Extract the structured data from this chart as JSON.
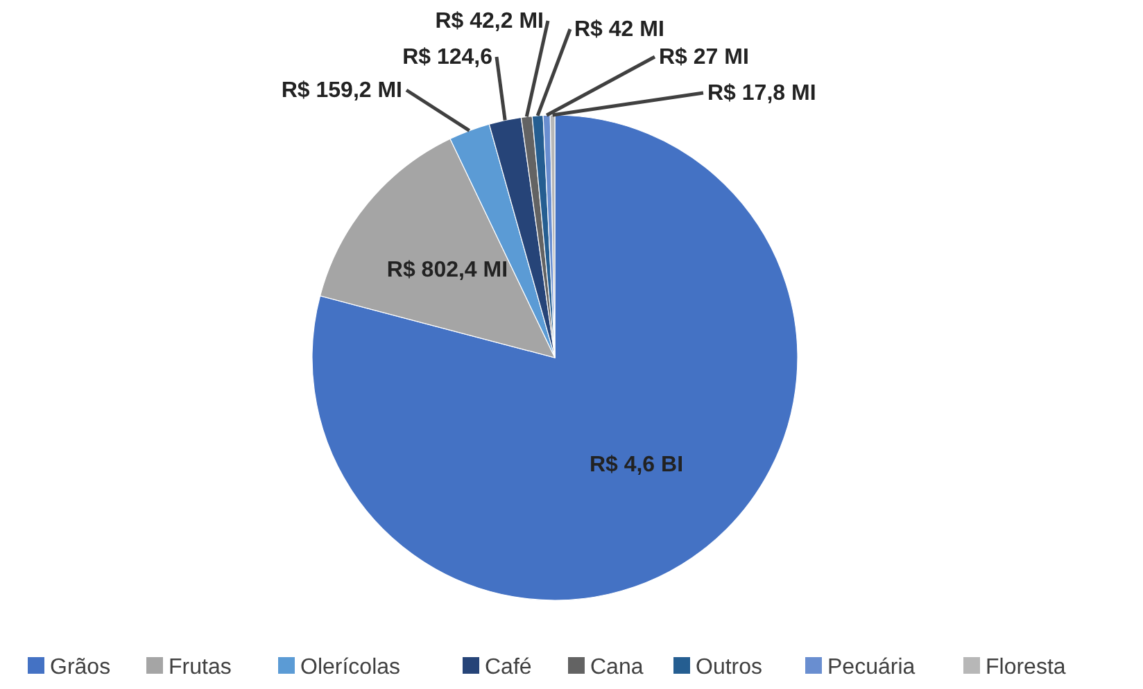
{
  "chart_data": {
    "type": "pie",
    "categories": [
      "Grãos",
      "Frutas",
      "Olerícolas",
      "Café",
      "Cana",
      "Outros",
      "Pecuária",
      "Floresta"
    ],
    "values": [
      4600,
      802.4,
      159.2,
      124.6,
      42.2,
      42,
      27,
      17.8
    ],
    "value_labels": [
      "R$ 4,6 BI",
      "R$ 802,4 MI",
      "R$ 159,2 MI",
      "R$ 124,6",
      "R$ 42,2 MI",
      "R$ 42 MI",
      "R$ 27 MI",
      "R$ 17,8 MI"
    ],
    "colors": [
      "#4472c4",
      "#a5a5a5",
      "#5b9bd5",
      "#264478",
      "#636363",
      "#255e91",
      "#698ed0",
      "#b7b7b7"
    ],
    "legend": "bottom"
  }
}
